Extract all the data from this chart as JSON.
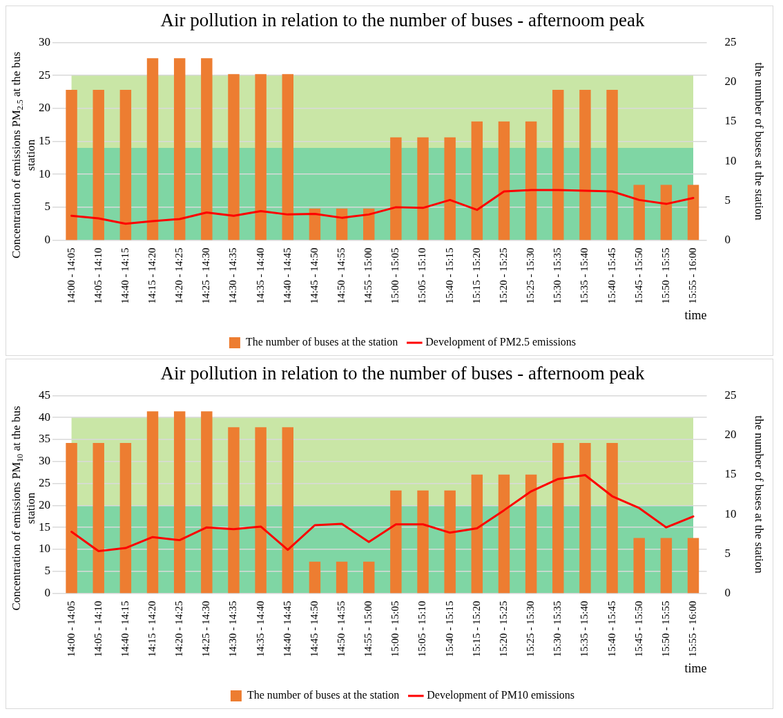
{
  "chart_data": [
    {
      "type": "bar",
      "title": "Air pollution in relation to the number of buses - afternoom peak",
      "xlabel": "time",
      "ylabel": "Concentration of emissions PM$_{2.5}$ at the bus station",
      "y2label": "the number of buses at the station",
      "categories": [
        "14:00 - 14:05",
        "14:05 - 14:10",
        "14:40 - 14:15",
        "14:15 - 14:20",
        "14:20 - 14:25",
        "14:25 - 14:30",
        "14:30 - 14:35",
        "14:35 - 14:40",
        "14:40 - 14:45",
        "14:45 - 14:50",
        "14:50 - 14:55",
        "14:55 - 15:00",
        "15:00 - 15:05",
        "15:05 - 15:10",
        "15:40 - 15:15",
        "15:15 - 15:20",
        "15:20 - 15:25",
        "15:25 - 15:30",
        "15:30 - 15:35",
        "15:35 - 15:40",
        "15:40 - 15:45",
        "15:45 - 15:50",
        "15:50 - 15:55",
        "15:55 - 16:00"
      ],
      "series": [
        {
          "name": "The number of buses at the station",
          "axis": "y2",
          "color": "#ed7d31",
          "values": [
            19,
            19,
            19,
            23,
            23,
            23,
            21,
            21,
            21,
            4,
            4,
            4,
            13,
            13,
            13,
            15,
            15,
            15,
            19,
            19,
            19,
            7,
            7,
            7
          ]
        },
        {
          "name": "Development of PM2.5 emissions",
          "type": "line",
          "color": "#ff0000",
          "values": [
            3.7,
            3.3,
            2.5,
            2.9,
            3.2,
            4.2,
            3.7,
            4.4,
            3.9,
            4.0,
            3.4,
            3.9,
            5.0,
            4.9,
            6.1,
            4.6,
            7.4,
            7.6,
            7.6,
            7.5,
            7.4,
            6.1,
            5.5,
            6.4
          ]
        }
      ],
      "ylim": [
        0,
        30
      ],
      "yticks": [
        0,
        5,
        10,
        15,
        20,
        25,
        30
      ],
      "y2lim": [
        0,
        25
      ],
      "y2ticks": [
        0,
        5,
        10,
        15,
        20,
        25
      ],
      "bands": [
        {
          "axis": "y",
          "from": 0,
          "to": 14,
          "color": "#7fd6a4"
        },
        {
          "axis": "y",
          "from": 14,
          "to": 25,
          "color": "#c9e6a6"
        }
      ],
      "grid": "y",
      "legend": "bottom",
      "marker": "none"
    },
    {
      "type": "bar",
      "title": "Air pollution in relation to the number of buses - afternoom peak",
      "xlabel": "time",
      "ylabel": "Concentration of emissions PM$_{10}$ at the bus station",
      "y2label": "the number of buses at the station",
      "categories": [
        "14:00 - 14:05",
        "14:05 - 14:10",
        "14:40 - 14:15",
        "14:15 - 14:20",
        "14:20 - 14:25",
        "14:25 - 14:30",
        "14:30 - 14:35",
        "14:35 - 14:40",
        "14:40 - 14:45",
        "14:45 - 14:50",
        "14:50 - 14:55",
        "14:55 - 15:00",
        "15:00 - 15:05",
        "15:05 - 15:10",
        "15:40 - 15:15",
        "15:15 - 15:20",
        "15:20 - 15:25",
        "15:25 - 15:30",
        "15:30 - 15:35",
        "15:35 - 15:40",
        "15:40 - 15:45",
        "15:45 - 15:50",
        "15:50 - 15:55",
        "15:55 - 16:00"
      ],
      "series": [
        {
          "name": "The number of buses at the station",
          "axis": "y2",
          "color": "#ed7d31",
          "values": [
            19,
            19,
            19,
            23,
            23,
            23,
            21,
            21,
            21,
            4,
            4,
            4,
            13,
            13,
            13,
            15,
            15,
            15,
            19,
            19,
            19,
            7,
            7,
            7
          ]
        },
        {
          "name": "Development of PM10 emissions",
          "type": "line",
          "color": "#ff0000",
          "values": [
            14.0,
            9.6,
            10.3,
            12.8,
            12.1,
            15.0,
            14.6,
            15.2,
            9.9,
            15.5,
            15.8,
            11.7,
            15.7,
            15.7,
            13.8,
            14.8,
            18.9,
            23.2,
            26.0,
            26.9,
            22.1,
            19.4,
            15.0,
            17.5
          ]
        }
      ],
      "ylim": [
        0,
        45
      ],
      "yticks": [
        0,
        5,
        10,
        15,
        20,
        25,
        30,
        35,
        40,
        45
      ],
      "y2lim": [
        0,
        25
      ],
      "y2ticks": [
        0,
        5,
        10,
        15,
        20,
        25
      ],
      "bands": [
        {
          "axis": "y",
          "from": 0,
          "to": 20,
          "color": "#7fd6a4"
        },
        {
          "axis": "y",
          "from": 20,
          "to": 40,
          "color": "#c9e6a6"
        }
      ],
      "grid": "y",
      "legend": "bottom",
      "marker": "none"
    }
  ]
}
